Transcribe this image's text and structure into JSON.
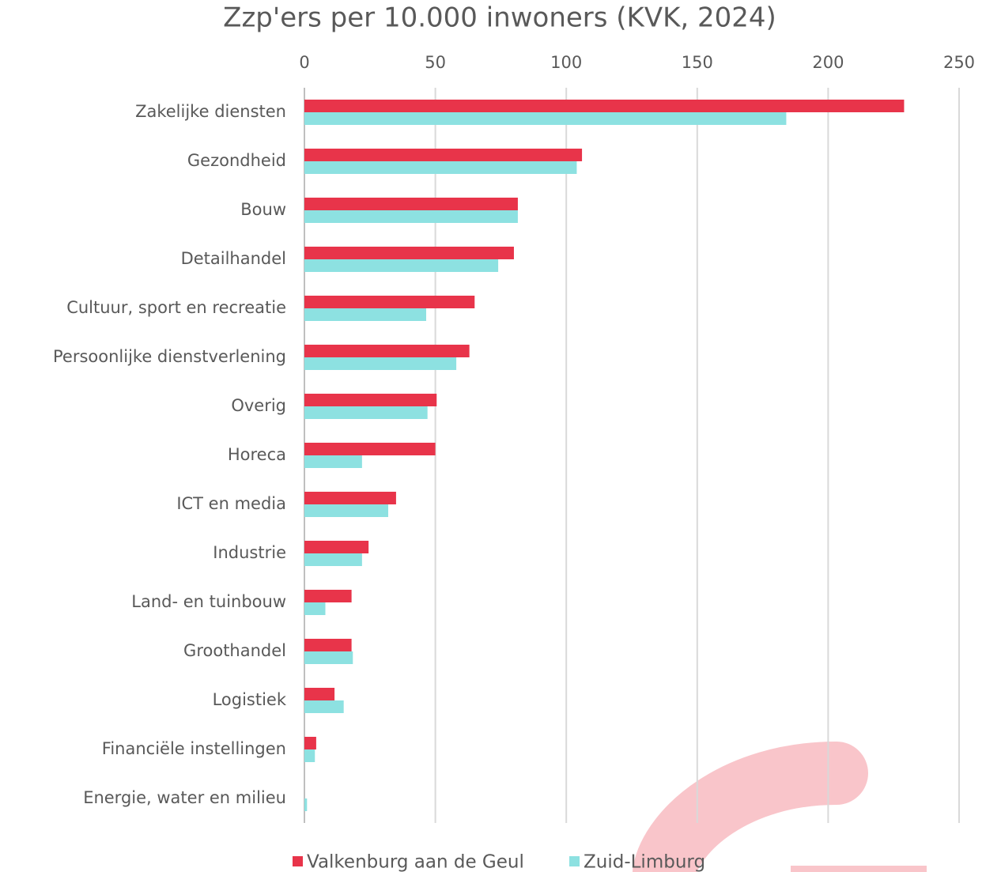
{
  "chart_data": {
    "type": "hbar",
    "title": "Zzp'ers per 10.000 inwoners (KVK, 2024)",
    "categories": [
      "Zakelijke diensten",
      "Gezondheid",
      "Bouw",
      "Detailhandel",
      "Cultuur, sport en recreatie",
      "Persoonlijke dienstverlening",
      "Overig",
      "Horeca",
      "ICT en media",
      "Industrie",
      "Land- en tuinbouw",
      "Groothandel",
      "Logistiek",
      "Financiële instellingen",
      "Energie, water en milieu"
    ],
    "series": [
      {
        "name": "Valkenburg aan de Geul",
        "color": "#e8344a",
        "values": [
          229,
          106,
          81.5,
          80,
          65,
          63,
          50.5,
          50,
          35,
          24.5,
          18,
          18,
          11.5,
          4.5,
          0
        ]
      },
      {
        "name": "Zuid-Limburg",
        "color": "#8de1e1",
        "values": [
          184,
          104,
          81.5,
          74,
          46.5,
          58,
          47,
          22,
          32,
          22,
          8,
          18.5,
          15,
          4,
          1
        ]
      }
    ],
    "xlim": [
      0,
      250
    ],
    "xticks": [
      0,
      50,
      100,
      150,
      200,
      250
    ],
    "grid": true,
    "legend": "bottom"
  }
}
